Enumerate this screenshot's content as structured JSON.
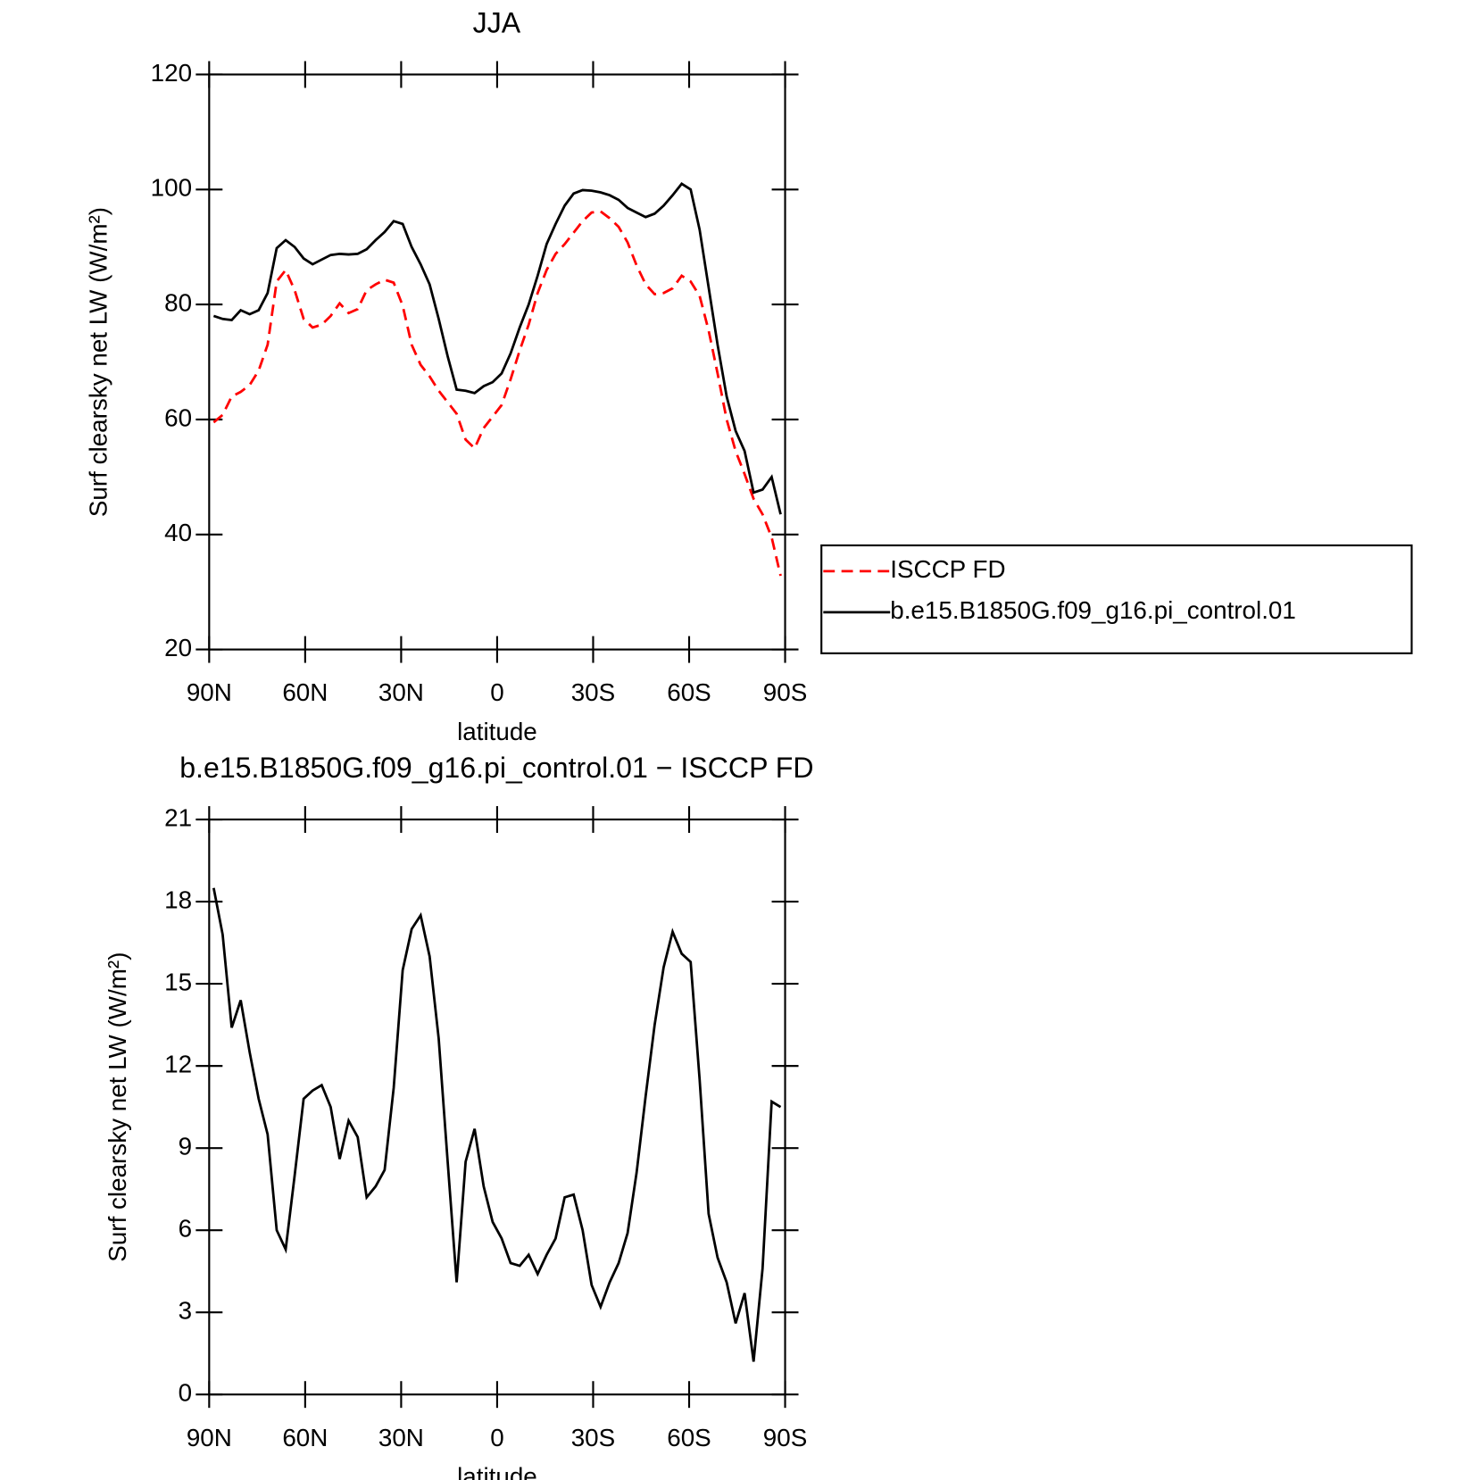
{
  "chart_data": [
    {
      "type": "line",
      "title": "JJA",
      "xlabel": "latitude",
      "ylabel": "Surf clearsky net LW (W/m²)",
      "xlim": [
        90,
        -90
      ],
      "xticks": [
        {
          "value": 90,
          "label": "90N"
        },
        {
          "value": 60,
          "label": "60N"
        },
        {
          "value": 30,
          "label": "30N"
        },
        0,
        {
          "value": -30,
          "label": "30S"
        },
        {
          "value": -60,
          "label": "60S"
        },
        {
          "value": -90,
          "label": "90S"
        }
      ],
      "ylim": [
        20,
        120
      ],
      "yticks": [
        20,
        40,
        60,
        80,
        100,
        120
      ],
      "legend": "right",
      "x": [
        88.59,
        85.78,
        82.97,
        80.16,
        77.34,
        74.53,
        71.72,
        68.91,
        66.09,
        63.28,
        60.47,
        57.66,
        54.84,
        52.03,
        49.22,
        46.41,
        43.59,
        40.78,
        37.97,
        35.16,
        32.34,
        29.53,
        26.72,
        23.91,
        21.09,
        18.28,
        15.47,
        12.66,
        9.84,
        7.03,
        4.22,
        1.41,
        -1.41,
        -4.22,
        -7.03,
        -9.84,
        -12.66,
        -15.47,
        -18.28,
        -21.09,
        -23.91,
        -26.72,
        -29.53,
        -32.34,
        -35.16,
        -37.97,
        -40.78,
        -43.59,
        -46.41,
        -49.22,
        -52.03,
        -54.84,
        -57.66,
        -60.47,
        -63.28,
        -66.09,
        -68.91,
        -71.72,
        -74.53,
        -77.34,
        -80.16,
        -82.97,
        -85.78,
        -88.59
      ],
      "series": [
        {
          "name": "ISCCP FD",
          "color": "#ff0000",
          "dashed": true,
          "values": [
            59.5,
            60.8,
            64,
            64.8,
            66,
            68.5,
            73,
            84,
            86,
            82.5,
            77.5,
            76,
            76.5,
            78,
            80.2,
            78.5,
            79.2,
            82.5,
            83.5,
            84.3,
            83.8,
            79.8,
            73,
            69.5,
            67.5,
            65,
            63,
            61,
            56.5,
            55,
            58.5,
            60.5,
            62.5,
            67,
            72,
            76.5,
            82,
            86,
            88.8,
            90.5,
            92.5,
            94.5,
            96,
            96.2,
            95,
            93.5,
            90.8,
            86.8,
            83.5,
            81.8,
            82,
            82.8,
            85,
            84,
            81.5,
            75.5,
            68,
            60,
            54.5,
            50.5,
            46.2,
            43.5,
            39.5,
            32.8
          ]
        },
        {
          "name": "b.e15.B1850G.f09_g16.pi_control.01",
          "color": "#000000",
          "dashed": false,
          "values": [
            78,
            77.5,
            77.3,
            79,
            78.3,
            79,
            82,
            89.8,
            91.2,
            90,
            88,
            87,
            87.8,
            88.6,
            88.8,
            88.7,
            88.8,
            89.6,
            91.2,
            92.6,
            94.5,
            94,
            90,
            87,
            83.5,
            77.5,
            71,
            65.2,
            65,
            64.6,
            65.8,
            66.5,
            68,
            71.5,
            76,
            80,
            85,
            90.5,
            94,
            97.2,
            99.3,
            99.9,
            99.8,
            99.5,
            99,
            98.2,
            96.8,
            96,
            95.2,
            95.8,
            97.2,
            99,
            101,
            100,
            93,
            83,
            73,
            64,
            58,
            54.5,
            47.3,
            47.8,
            50,
            43.5
          ]
        }
      ]
    },
    {
      "type": "line",
      "title": "b.e15.B1850G.f09_g16.pi_control.01 − ISCCP FD",
      "xlabel": "latitude",
      "ylabel": "Surf clearsky net LW (W/m²)",
      "xlim": [
        90,
        -90
      ],
      "xticks": [
        {
          "value": 90,
          "label": "90N"
        },
        {
          "value": 60,
          "label": "60N"
        },
        {
          "value": 30,
          "label": "30N"
        },
        0,
        {
          "value": -30,
          "label": "30S"
        },
        {
          "value": -60,
          "label": "60S"
        },
        {
          "value": -90,
          "label": "90S"
        }
      ],
      "ylim": [
        0,
        21
      ],
      "yticks": [
        0,
        3,
        6,
        9,
        12,
        15,
        18,
        21
      ],
      "x": [
        88.59,
        85.78,
        82.97,
        80.16,
        77.34,
        74.53,
        71.72,
        68.91,
        66.09,
        63.28,
        60.47,
        57.66,
        54.84,
        52.03,
        49.22,
        46.41,
        43.59,
        40.78,
        37.97,
        35.16,
        32.34,
        29.53,
        26.72,
        23.91,
        21.09,
        18.28,
        15.47,
        12.66,
        9.84,
        7.03,
        4.22,
        1.41,
        -1.41,
        -4.22,
        -7.03,
        -9.84,
        -12.66,
        -15.47,
        -18.28,
        -21.09,
        -23.91,
        -26.72,
        -29.53,
        -32.34,
        -35.16,
        -37.97,
        -40.78,
        -43.59,
        -46.41,
        -49.22,
        -52.03,
        -54.84,
        -57.66,
        -60.47,
        -63.28,
        -66.09,
        -68.91,
        -71.72,
        -74.53,
        -77.34,
        -80.16,
        -82.97,
        -85.78,
        -88.59
      ],
      "color": "#000000",
      "values": [
        18.5,
        16.8,
        13.4,
        14.4,
        12.5,
        10.8,
        9.5,
        6,
        5.3,
        8,
        10.8,
        11.1,
        11.3,
        10.5,
        8.6,
        10,
        9.4,
        7.2,
        7.6,
        8.2,
        11.2,
        15.5,
        17,
        17.5,
        16,
        13,
        8.5,
        4.1,
        8.5,
        9.7,
        7.6,
        6.3,
        5.7,
        4.8,
        4.7,
        5.1,
        4.4,
        5.1,
        5.7,
        7.2,
        7.3,
        6,
        4,
        3.2,
        4.1,
        4.8,
        5.9,
        8.1,
        10.9,
        13.5,
        15.6,
        16.9,
        16.1,
        15.8,
        11.5,
        6.6,
        5,
        4.1,
        2.6,
        3.7,
        1.2,
        4.6,
        10.7,
        10.5
      ]
    }
  ]
}
